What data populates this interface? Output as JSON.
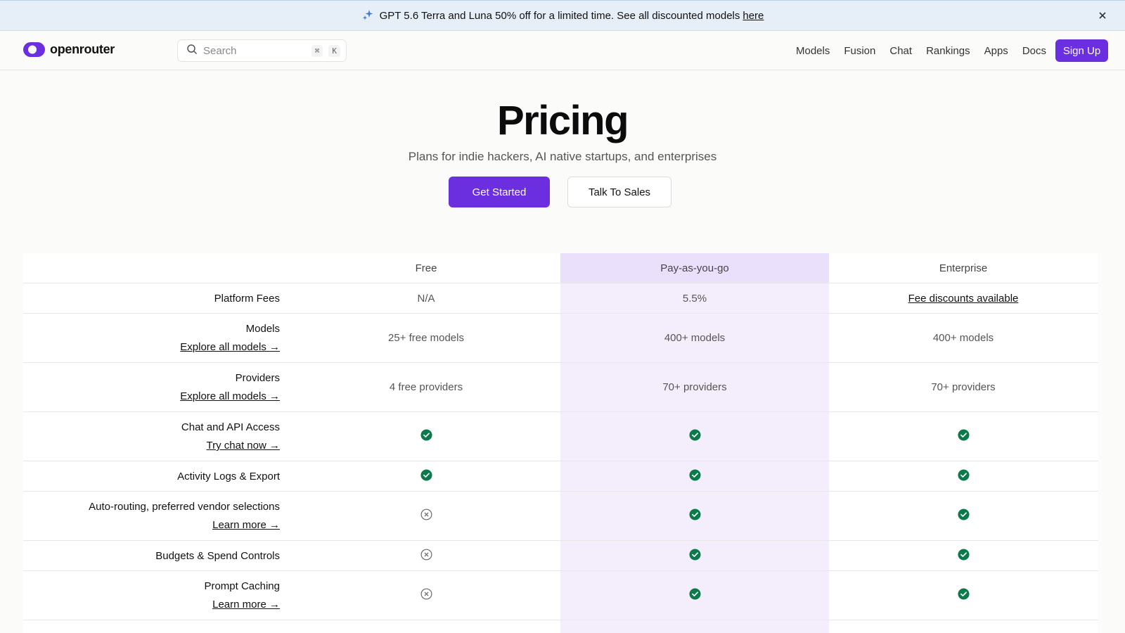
{
  "banner": {
    "text": "GPT 5.6 Terra and Luna 50% off for a limited time. See all discounted models",
    "link": "here",
    "icon": "sparkle-icon",
    "close_icon": "close-icon"
  },
  "header": {
    "logo_text": "openrouter",
    "search_placeholder": "Search",
    "shortcut_symbol": "⌘",
    "shortcut_key": "K",
    "nav": [
      "Models",
      "Fusion",
      "Chat",
      "Rankings",
      "Apps",
      "Docs"
    ],
    "signup": "Sign Up"
  },
  "hero": {
    "title": "Pricing",
    "subtitle": "Plans for indie hackers, AI native startups, and enterprises",
    "primary_button": "Get Started",
    "secondary_button": "Talk To Sales"
  },
  "table": {
    "columns": [
      "Free",
      "Pay-as-you-go",
      "Enterprise"
    ],
    "rows": [
      {
        "label": "Platform Fees",
        "link": "",
        "values": [
          "N/A",
          "5.5%",
          "Fee discounts available"
        ]
      },
      {
        "label": "Models",
        "link": "Explore all models →",
        "values": [
          "25+ free models",
          "400+ models",
          "400+ models"
        ]
      },
      {
        "label": "Providers",
        "link": "Explore all models →",
        "values": [
          "4 free providers",
          "70+ providers",
          "70+ providers"
        ]
      },
      {
        "label": "Chat and API Access",
        "link": "Try chat now →",
        "values": [
          "check",
          "check",
          "check"
        ]
      },
      {
        "label": "Activity Logs & Export",
        "link": "",
        "values": [
          "check",
          "check",
          "check"
        ]
      },
      {
        "label": "Auto-routing, preferred vendor selections",
        "link": "Learn more →",
        "values": [
          "cross",
          "check",
          "check"
        ]
      },
      {
        "label": "Budgets & Spend Controls",
        "link": "",
        "values": [
          "cross",
          "check",
          "check"
        ]
      },
      {
        "label": "Prompt Caching",
        "link": "Learn more →",
        "values": [
          "cross",
          "check",
          "check"
        ]
      }
    ]
  },
  "colors": {
    "accent": "#6b2fe0",
    "highlight_column": "#f4eefc",
    "check_green": "#0a7a4a",
    "banner_bg": "#e6eff8"
  }
}
